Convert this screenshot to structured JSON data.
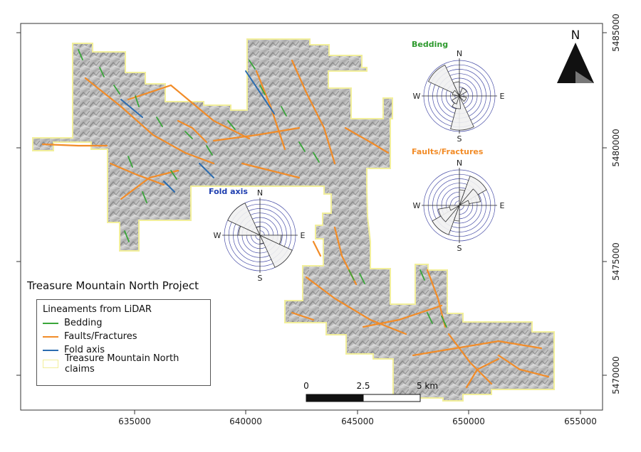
{
  "title": "Treasure Mountain North Project",
  "north_label": "N",
  "axes": {
    "x_ticks": [
      "635000",
      "640000",
      "645000",
      "650000",
      "655000"
    ],
    "y_ticks": [
      "5485000",
      "5480000",
      "5475000",
      "5470000"
    ]
  },
  "legend": {
    "title": "Lineaments from LiDAR",
    "items": [
      {
        "label": "Bedding",
        "color": "#3aa63a",
        "kind": "line"
      },
      {
        "label": "Faults/Fractures",
        "color": "#f28c28",
        "kind": "line"
      },
      {
        "label": "Fold axis",
        "color": "#2b6cb0",
        "kind": "line"
      },
      {
        "label": "Treasure Mountain North claims",
        "color": "#f2ef9a",
        "kind": "box"
      }
    ]
  },
  "scale_bar": {
    "labels": [
      "0",
      "2.5",
      "5 km"
    ]
  },
  "roses": [
    {
      "title": "Bedding",
      "title_color": "#2e9a2e",
      "dirs": [
        "N",
        "E",
        "S",
        "W"
      ]
    },
    {
      "title": "Faults/Fractures",
      "title_color": "#f28c28",
      "dirs": [
        "N",
        "E",
        "S",
        "W"
      ]
    },
    {
      "title": "Fold axis",
      "title_color": "#1f3fb0",
      "dirs": [
        "N",
        "E",
        "S",
        "W"
      ]
    }
  ],
  "colors": {
    "bedding": "#3aa63a",
    "faults": "#f28c28",
    "fold_axis": "#2b6cb0",
    "claims": "#f2ef9a"
  }
}
